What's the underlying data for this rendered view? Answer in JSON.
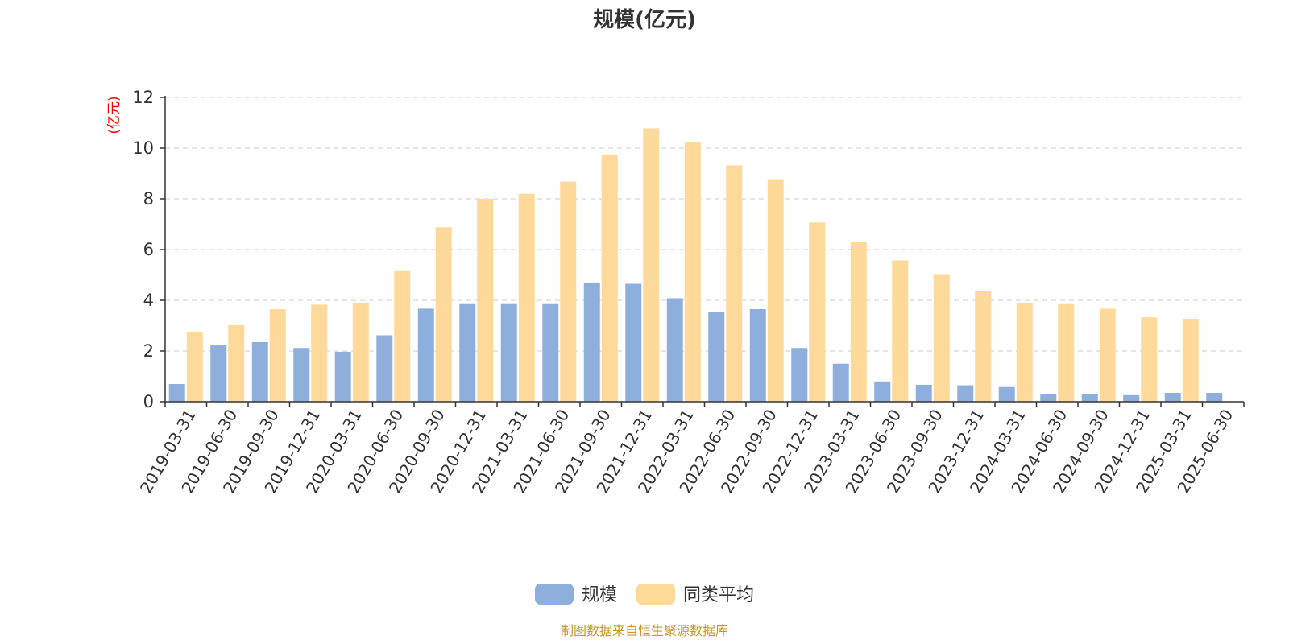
{
  "chart_data": {
    "type": "bar",
    "title": "规模(亿元)",
    "ylabel": "(亿元)",
    "xlabel": "",
    "ylim": [
      0,
      12
    ],
    "yticks": [
      0,
      2,
      4,
      6,
      8,
      10,
      12
    ],
    "grid": true,
    "legend_position": "bottom",
    "categories": [
      "2019-03-31",
      "2019-06-30",
      "2019-09-30",
      "2019-12-31",
      "2020-03-31",
      "2020-06-30",
      "2020-09-30",
      "2020-12-31",
      "2021-03-31",
      "2021-06-30",
      "2021-09-30",
      "2021-12-31",
      "2022-03-31",
      "2022-06-30",
      "2022-09-30",
      "2022-12-31",
      "2023-03-31",
      "2023-06-30",
      "2023-09-30",
      "2023-12-31",
      "2024-03-31",
      "2024-06-30",
      "2024-09-30",
      "2024-12-31",
      "2025-03-31",
      "2025-06-30"
    ],
    "series": [
      {
        "name": "规模",
        "color": "#8eaedb",
        "values": [
          0.7,
          2.22,
          2.35,
          2.12,
          1.97,
          2.62,
          3.67,
          3.85,
          3.85,
          3.85,
          4.7,
          4.65,
          4.08,
          3.55,
          3.65,
          2.12,
          1.5,
          0.8,
          0.67,
          0.65,
          0.58,
          0.31,
          0.29,
          0.26,
          0.35,
          0.35
        ]
      },
      {
        "name": "同类平均",
        "color": "#ffd99a",
        "values": [
          2.75,
          3.02,
          3.65,
          3.83,
          3.9,
          5.15,
          6.88,
          8.0,
          8.2,
          8.68,
          9.75,
          10.78,
          10.25,
          9.32,
          8.78,
          7.07,
          6.3,
          5.57,
          5.03,
          4.35,
          3.88,
          3.85,
          3.67,
          3.33,
          3.27,
          null
        ]
      }
    ]
  },
  "source_note": "制图数据来自恒生聚源数据库",
  "colors": {
    "axis": "#333333",
    "grid": "#cccccc",
    "ylabel": "#ff0000",
    "source": "#c8962a"
  }
}
